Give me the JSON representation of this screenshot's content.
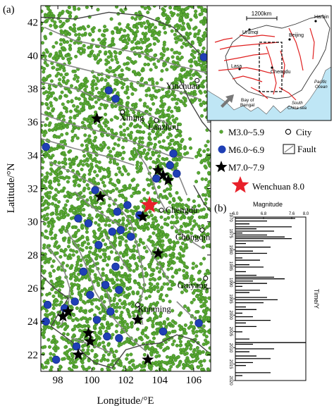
{
  "panel_a": {
    "label": "(a)",
    "xlabel": "Longitude/°E",
    "ylabel": "Latitude/°N",
    "xlim": [
      97,
      107
    ],
    "ylim": [
      21,
      43
    ],
    "xticks": [
      98,
      100,
      102,
      104,
      106
    ],
    "yticks": [
      22,
      24,
      26,
      28,
      30,
      32,
      34,
      36,
      38,
      40,
      42
    ],
    "cities": [
      {
        "name": "Yinchuan",
        "lon": 106.2,
        "lat": 38.5
      },
      {
        "name": "Xining",
        "lon": 101.8,
        "lat": 36.6
      },
      {
        "name": "Lanzhou",
        "lon": 103.8,
        "lat": 36.1
      },
      {
        "name": "Chengdu",
        "lon": 104.1,
        "lat": 30.7
      },
      {
        "name": "Chongqing",
        "lon": 106.5,
        "lat": 29.5
      },
      {
        "name": "Guiyang",
        "lon": 106.7,
        "lat": 26.6
      },
      {
        "name": "Kunming",
        "lon": 102.7,
        "lat": 25.0
      }
    ],
    "m7_events": [
      {
        "lon": 100.3,
        "lat": 36.2
      },
      {
        "lon": 103.9,
        "lat": 33.1
      },
      {
        "lon": 104.2,
        "lat": 32.8
      },
      {
        "lon": 104.5,
        "lat": 32.5
      },
      {
        "lon": 100.5,
        "lat": 31.5
      },
      {
        "lon": 103.0,
        "lat": 30.3
      },
      {
        "lon": 103.9,
        "lat": 28.1
      },
      {
        "lon": 98.3,
        "lat": 24.3
      },
      {
        "lon": 98.6,
        "lat": 24.6
      },
      {
        "lon": 99.8,
        "lat": 23.3
      },
      {
        "lon": 99.9,
        "lat": 22.8
      },
      {
        "lon": 102.7,
        "lat": 24.1
      },
      {
        "lon": 99.2,
        "lat": 22.0
      },
      {
        "lon": 103.3,
        "lat": 21.7
      }
    ],
    "m6_events": [
      {
        "lon": 106.6,
        "lat": 39.9
      },
      {
        "lon": 101.0,
        "lat": 37.9
      },
      {
        "lon": 101.4,
        "lat": 37.4
      },
      {
        "lon": 97.3,
        "lat": 34.5
      },
      {
        "lon": 104.8,
        "lat": 34.1
      },
      {
        "lon": 104.6,
        "lat": 33.4
      },
      {
        "lon": 105.0,
        "lat": 32.9
      },
      {
        "lon": 103.8,
        "lat": 32.6
      },
      {
        "lon": 100.2,
        "lat": 31.9
      },
      {
        "lon": 102.1,
        "lat": 31.0
      },
      {
        "lon": 101.5,
        "lat": 30.6
      },
      {
        "lon": 102.8,
        "lat": 30.4
      },
      {
        "lon": 99.2,
        "lat": 30.2
      },
      {
        "lon": 99.8,
        "lat": 29.9
      },
      {
        "lon": 101.7,
        "lat": 29.5
      },
      {
        "lon": 101.2,
        "lat": 29.4
      },
      {
        "lon": 102.3,
        "lat": 29.1
      },
      {
        "lon": 100.4,
        "lat": 28.6
      },
      {
        "lon": 101.4,
        "lat": 27.3
      },
      {
        "lon": 99.5,
        "lat": 27.0
      },
      {
        "lon": 100.8,
        "lat": 26.2
      },
      {
        "lon": 99.9,
        "lat": 25.6
      },
      {
        "lon": 101.6,
        "lat": 25.9
      },
      {
        "lon": 97.4,
        "lat": 25.0
      },
      {
        "lon": 98.4,
        "lat": 24.8
      },
      {
        "lon": 99.0,
        "lat": 25.2
      },
      {
        "lon": 100.3,
        "lat": 24.1
      },
      {
        "lon": 101.1,
        "lat": 24.6
      },
      {
        "lon": 97.3,
        "lat": 24.0
      },
      {
        "lon": 99.1,
        "lat": 22.5
      },
      {
        "lon": 100.9,
        "lat": 23.1
      },
      {
        "lon": 101.6,
        "lat": 23.0
      },
      {
        "lon": 97.9,
        "lat": 21.7
      },
      {
        "lon": 106.3,
        "lat": 23.9
      },
      {
        "lon": 104.2,
        "lat": 23.4
      }
    ],
    "wenchuan": {
      "lon": 103.4,
      "lat": 31.0
    }
  },
  "legend": {
    "m3": "M3.0~5.9",
    "m6": "M6.0~6.9",
    "m7": "M7.0~7.9",
    "city": "City",
    "fault": "Fault",
    "wenchuan": "Wenchuan 8.0"
  },
  "inset": {
    "scale_label": "1200km",
    "places": [
      {
        "name": "Harbin"
      },
      {
        "name": "Urumqi"
      },
      {
        "name": "Beijing"
      },
      {
        "name": "Lasa"
      },
      {
        "name": "Chengdu"
      },
      {
        "name": "Bay of"
      },
      {
        "name": "Bengal"
      },
      {
        "name": "South"
      },
      {
        "name": "China sea"
      },
      {
        "name": "Pacific"
      },
      {
        "name": "Ocean"
      }
    ]
  },
  "panel_b": {
    "label": "(b)",
    "xlabel": "Magnitude",
    "ylabel": "Time/Y",
    "mag_ticks": [
      "6.0",
      "6.8",
      "7.6",
      "8.0"
    ],
    "year_ticks": [
      "1970",
      "1975",
      "1980",
      "1985",
      "1990",
      "1995",
      "2000",
      "2005",
      "2010",
      "2015",
      "2020"
    ],
    "xlim": [
      6.0,
      8.0
    ],
    "ylim": [
      1970,
      2020
    ],
    "events": [
      {
        "year": 1970.4,
        "mag": 7.7
      },
      {
        "year": 1971.2,
        "mag": 6.9
      },
      {
        "year": 1972.1,
        "mag": 6.4
      },
      {
        "year": 1973.0,
        "mag": 7.6
      },
      {
        "year": 1973.6,
        "mag": 6.6
      },
      {
        "year": 1974.3,
        "mag": 7.1
      },
      {
        "year": 1974.9,
        "mag": 6.2
      },
      {
        "year": 1975.5,
        "mag": 6.9
      },
      {
        "year": 1976.1,
        "mag": 7.4
      },
      {
        "year": 1976.6,
        "mag": 7.6
      },
      {
        "year": 1977.3,
        "mag": 6.8
      },
      {
        "year": 1978.1,
        "mag": 6.3
      },
      {
        "year": 1979.2,
        "mag": 7.0
      },
      {
        "year": 1980.4,
        "mag": 6.5
      },
      {
        "year": 1981.1,
        "mag": 6.9
      },
      {
        "year": 1982.5,
        "mag": 6.2
      },
      {
        "year": 1983.2,
        "mag": 6.7
      },
      {
        "year": 1984.6,
        "mag": 6.4
      },
      {
        "year": 1985.3,
        "mag": 6.8
      },
      {
        "year": 1986.7,
        "mag": 6.3
      },
      {
        "year": 1987.8,
        "mag": 6.6
      },
      {
        "year": 1988.4,
        "mag": 7.1
      },
      {
        "year": 1988.9,
        "mag": 7.4
      },
      {
        "year": 1989.6,
        "mag": 6.5
      },
      {
        "year": 1990.3,
        "mag": 6.9
      },
      {
        "year": 1991.2,
        "mag": 6.2
      },
      {
        "year": 1992.4,
        "mag": 6.7
      },
      {
        "year": 1993.1,
        "mag": 6.4
      },
      {
        "year": 1994.6,
        "mag": 6.9
      },
      {
        "year": 1995.3,
        "mag": 7.2
      },
      {
        "year": 1996.2,
        "mag": 6.8
      },
      {
        "year": 1997.5,
        "mag": 6.3
      },
      {
        "year": 1998.3,
        "mag": 6.6
      },
      {
        "year": 1999.4,
        "mag": 6.2
      },
      {
        "year": 2000.5,
        "mag": 6.5
      },
      {
        "year": 2001.6,
        "mag": 7.0
      },
      {
        "year": 2002.4,
        "mag": 6.3
      },
      {
        "year": 2003.5,
        "mag": 6.6
      },
      {
        "year": 2005.1,
        "mag": 6.2
      },
      {
        "year": 2007.3,
        "mag": 6.4
      },
      {
        "year": 2008.4,
        "mag": 8.0
      },
      {
        "year": 2008.9,
        "mag": 6.5
      },
      {
        "year": 2010.3,
        "mag": 7.1
      },
      {
        "year": 2011.2,
        "mag": 6.4
      },
      {
        "year": 2012.5,
        "mag": 6.6
      },
      {
        "year": 2013.3,
        "mag": 7.0
      },
      {
        "year": 2014.5,
        "mag": 6.5
      },
      {
        "year": 2015.4,
        "mag": 6.3
      },
      {
        "year": 2017.6,
        "mag": 7.0
      },
      {
        "year": 2018.5,
        "mag": 6.2
      },
      {
        "year": 2019.3,
        "mag": 6.0
      }
    ]
  },
  "colors": {
    "m3": "#5aa832",
    "m3_edge": "#2f7a1f",
    "m6": "#1f3fb5",
    "m7": "#000000",
    "wenchuan": "#e8202a",
    "fault": "#888888",
    "boundary": "#444444",
    "inset_water": "#bfe6f5",
    "inset_fault": "#e02020"
  }
}
